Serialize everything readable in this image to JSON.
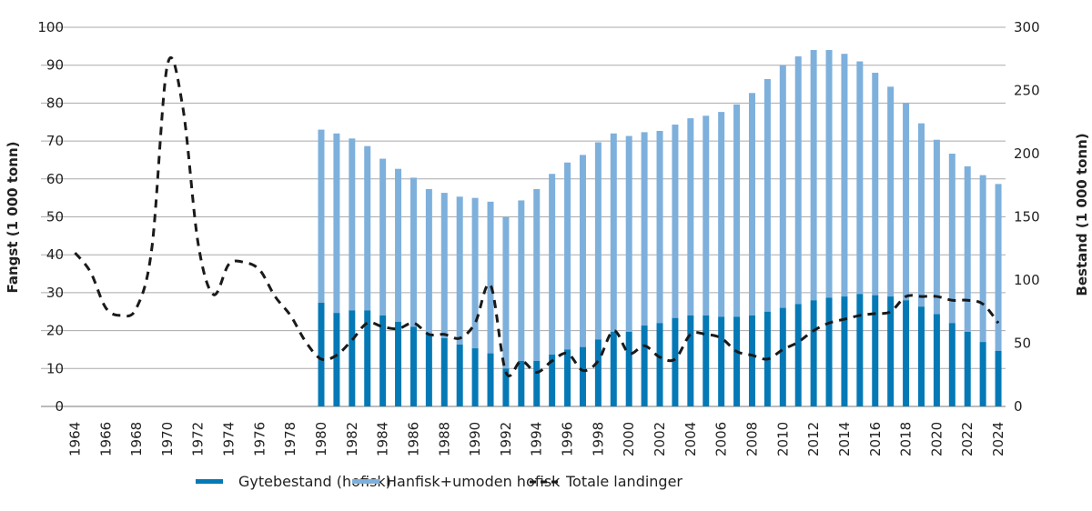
{
  "chart_data": {
    "type": "bar",
    "title": "",
    "ylabel_left": "Fangst (1 000 tonn)",
    "ylabel_right": "Bestand (1 000 tonn)",
    "ylim_left": [
      0,
      100
    ],
    "ylim_right": [
      0,
      300
    ],
    "yticks_left": [
      0,
      10,
      20,
      30,
      40,
      50,
      60,
      70,
      80,
      90,
      100
    ],
    "yticks_right": [
      0,
      50,
      100,
      150,
      200,
      250,
      300
    ],
    "grid": true,
    "legend_position": "bottom",
    "xticks": [
      1964,
      1966,
      1968,
      1970,
      1972,
      1974,
      1976,
      1978,
      1980,
      1982,
      1984,
      1986,
      1988,
      1990,
      1992,
      1994,
      1996,
      1998,
      2000,
      2002,
      2004,
      2006,
      2008,
      2010,
      2012,
      2014,
      2016,
      2018,
      2020,
      2022,
      2024
    ],
    "bar_years": [
      1980,
      1981,
      1982,
      1983,
      1984,
      1985,
      1986,
      1987,
      1988,
      1989,
      1990,
      1991,
      1992,
      1993,
      1994,
      1995,
      1996,
      1997,
      1998,
      1999,
      2000,
      2001,
      2002,
      2003,
      2004,
      2005,
      2006,
      2007,
      2008,
      2009,
      2010,
      2011,
      2012,
      2013,
      2014,
      2015,
      2016,
      2017,
      2018,
      2019,
      2020,
      2021,
      2022,
      2023,
      2024
    ],
    "series": [
      {
        "name": "Gytebestand (hofisk)",
        "type": "bar",
        "axis": "right",
        "stack": "bestand",
        "color": "#0579b6",
        "values": [
          82,
          74,
          76,
          76,
          72,
          67,
          63,
          57,
          54,
          49,
          46,
          42,
          30,
          36,
          36,
          41,
          45,
          47,
          53,
          59,
          59,
          64,
          66,
          70,
          72,
          72,
          71,
          71,
          72,
          75,
          78,
          81,
          84,
          86,
          87,
          89,
          88,
          87,
          84,
          79,
          73,
          66,
          59,
          51,
          44
        ]
      },
      {
        "name": "Hanfisk+umoden hofisk",
        "type": "bar",
        "axis": "right",
        "stack": "bestand",
        "color": "#7eb0dc",
        "total_values": [
          219,
          216,
          212,
          206,
          196,
          188,
          181,
          172,
          169,
          166,
          165,
          162,
          150,
          163,
          172,
          184,
          193,
          199,
          209,
          216,
          214,
          217,
          218,
          223,
          228,
          230,
          233,
          239,
          248,
          259,
          270,
          277,
          282,
          282,
          279,
          273,
          264,
          253,
          240,
          224,
          211,
          200,
          190,
          183,
          176
        ]
      },
      {
        "name": "Totale landinger",
        "type": "line",
        "axis": "left",
        "style": "dashed",
        "color": "#1a1a1a",
        "x": [
          1964,
          1965,
          1966,
          1967,
          1968,
          1969,
          1970,
          1971,
          1972,
          1973,
          1974,
          1975,
          1976,
          1977,
          1978,
          1979,
          1980,
          1981,
          1982,
          1983,
          1984,
          1985,
          1986,
          1987,
          1988,
          1989,
          1990,
          1991,
          1992,
          1993,
          1994,
          1995,
          1996,
          1997,
          1998,
          1999,
          2000,
          2001,
          2002,
          2003,
          2004,
          2005,
          2006,
          2007,
          2008,
          2009,
          2010,
          2011,
          2012,
          2013,
          2014,
          2015,
          2016,
          2017,
          2018,
          2019,
          2020,
          2021,
          2022,
          2023,
          2024
        ],
        "values": [
          40.5,
          35.5,
          26,
          24,
          26,
          42,
          90,
          79,
          43,
          29.5,
          37.5,
          38,
          36,
          29,
          24,
          17,
          12.5,
          13.5,
          17.5,
          22,
          21,
          20.5,
          22,
          19,
          19,
          18,
          22,
          32,
          9,
          12,
          9,
          12,
          14,
          9.5,
          12,
          20,
          14,
          16,
          13,
          12.5,
          19,
          19,
          18,
          14.5,
          13.5,
          12.5,
          15,
          17,
          20,
          22,
          23,
          24,
          24.5,
          25,
          29,
          29,
          29,
          28,
          28,
          27,
          22
        ]
      }
    ]
  }
}
